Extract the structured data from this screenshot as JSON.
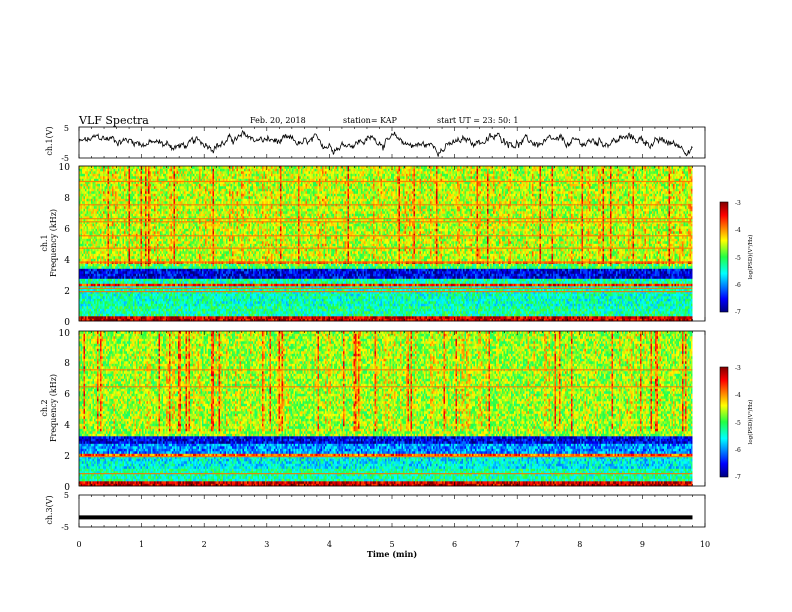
{
  "header": {
    "title": "VLF Spectra",
    "date": "Feb. 20, 2018",
    "station": "station= KAP",
    "start": "start  UT  =   23: 50: 1"
  },
  "chart_data": [
    {
      "type": "line",
      "ylabel": "ch.1(V)",
      "yticks": [
        "5",
        "-5"
      ],
      "xlim": [
        0,
        10
      ],
      "ylim": [
        -5,
        5
      ],
      "x_extent": [
        0,
        9.8
      ],
      "description_values": {
        "mean": 0,
        "amplitude": 3
      },
      "color": "#000000"
    },
    {
      "type": "heatmap",
      "ylabel_line1": "ch.1",
      "ylabel_line2": "Frequency (kHz)",
      "xlim": [
        0,
        10
      ],
      "ylim": [
        0,
        10
      ],
      "x_extent": [
        0,
        9.8
      ],
      "yticks": [
        "0",
        "2",
        "4",
        "6",
        "8",
        "10"
      ],
      "colorbar": {
        "label": "log(PSD)(V²/Hz)",
        "ticks": [
          "-3",
          "-4",
          "-5",
          "-6",
          "-7"
        ],
        "range": [
          -7,
          -3
        ]
      },
      "bands_khz": [
        {
          "from": 0.0,
          "to": 0.35,
          "level": -3.3
        },
        {
          "from": 0.35,
          "to": 0.9,
          "level": -5.3
        },
        {
          "from": 0.9,
          "to": 1.0,
          "level": -3.2
        },
        {
          "from": 1.0,
          "to": 2.2,
          "level": -5.4
        },
        {
          "from": 2.2,
          "to": 2.35,
          "level": -3.6
        },
        {
          "from": 2.35,
          "to": 2.75,
          "level": -5.3
        },
        {
          "from": 2.75,
          "to": 3.4,
          "level": -6.6
        },
        {
          "from": 3.4,
          "to": 3.7,
          "level": -5.0
        },
        {
          "from": 3.7,
          "to": 3.85,
          "level": -3.9
        },
        {
          "from": 3.85,
          "to": 10.0,
          "level": -4.6
        }
      ],
      "tones_khz": [
        1.9,
        2.1,
        3.8,
        4.7,
        5.5,
        6.4,
        6.6,
        7.5,
        9.0
      ]
    },
    {
      "type": "heatmap",
      "ylabel_line1": "ch.2",
      "ylabel_line2": "Frequency (kHz)",
      "xlim": [
        0,
        10
      ],
      "ylim": [
        0,
        10
      ],
      "x_extent": [
        0,
        9.8
      ],
      "yticks": [
        "0",
        "2",
        "4",
        "6",
        "8",
        "10"
      ],
      "colorbar": {
        "label": "log(PSD)(V²/Hz)",
        "ticks": [
          "-3",
          "-4",
          "-5",
          "-6",
          "-7"
        ],
        "range": [
          -7,
          -3
        ]
      },
      "bands_khz": [
        {
          "from": 0.0,
          "to": 0.4,
          "level": -3.3
        },
        {
          "from": 0.4,
          "to": 1.2,
          "level": -5.3
        },
        {
          "from": 1.2,
          "to": 1.9,
          "level": -5.6
        },
        {
          "from": 1.9,
          "to": 2.05,
          "level": -3.8
        },
        {
          "from": 2.05,
          "to": 2.8,
          "level": -6.0
        },
        {
          "from": 2.8,
          "to": 3.3,
          "level": -6.6
        },
        {
          "from": 3.3,
          "to": 10.0,
          "level": -4.7
        }
      ],
      "tones_khz": [
        0.8,
        1.9,
        6.4,
        7.5
      ]
    },
    {
      "type": "line",
      "ylabel": "ch.3(V)",
      "yticks": [
        "5",
        "-5"
      ],
      "xlim": [
        0,
        10
      ],
      "ylim": [
        -5,
        5
      ],
      "x": [
        0,
        9.8
      ],
      "y": [
        -2,
        -2
      ],
      "color": "#000000"
    }
  ],
  "xaxis": {
    "label": "Time  (min)",
    "ticks": [
      "0",
      "1",
      "2",
      "3",
      "4",
      "5",
      "6",
      "7",
      "8",
      "9",
      "10"
    ]
  }
}
